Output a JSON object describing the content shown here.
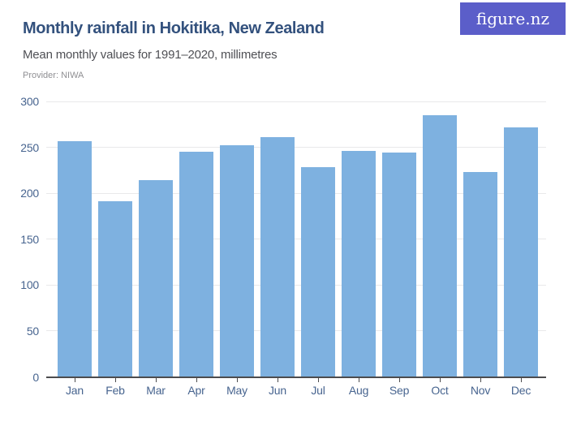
{
  "header": {
    "title": "Monthly rainfall in Hokitika, New Zealand",
    "subtitle": "Mean monthly values for 1991–2020, millimetres",
    "provider": "Provider: NIWA",
    "logo_text": "figure.nz"
  },
  "colors": {
    "bar": "#7EB1E0",
    "logo_bg": "#5B5EC9",
    "title": "#33517D",
    "subtitle": "#4F5055",
    "provider": "#8F8F93",
    "axis_label": "#47648F",
    "gridline": "#E9E9EA",
    "axis_line": "#4C4C4E",
    "background": "#FFFFFF"
  },
  "chart_data": {
    "type": "bar",
    "title": "Monthly rainfall in Hokitika, New Zealand",
    "subtitle": "Mean monthly values for 1991–2020, millimetres",
    "provider": "Provider: NIWA",
    "unit": "millimetres",
    "categories": [
      "Jan",
      "Feb",
      "Mar",
      "Apr",
      "May",
      "Jun",
      "Jul",
      "Aug",
      "Sep",
      "Oct",
      "Nov",
      "Dec"
    ],
    "values": [
      257,
      191,
      214,
      245,
      252,
      261,
      228,
      246,
      244,
      285,
      223,
      272
    ],
    "xlabel": "",
    "ylabel": "",
    "ylim": [
      0,
      300
    ],
    "yticks": [
      0,
      50,
      100,
      150,
      200,
      250,
      300
    ],
    "grid": true,
    "legend_position": "none"
  }
}
